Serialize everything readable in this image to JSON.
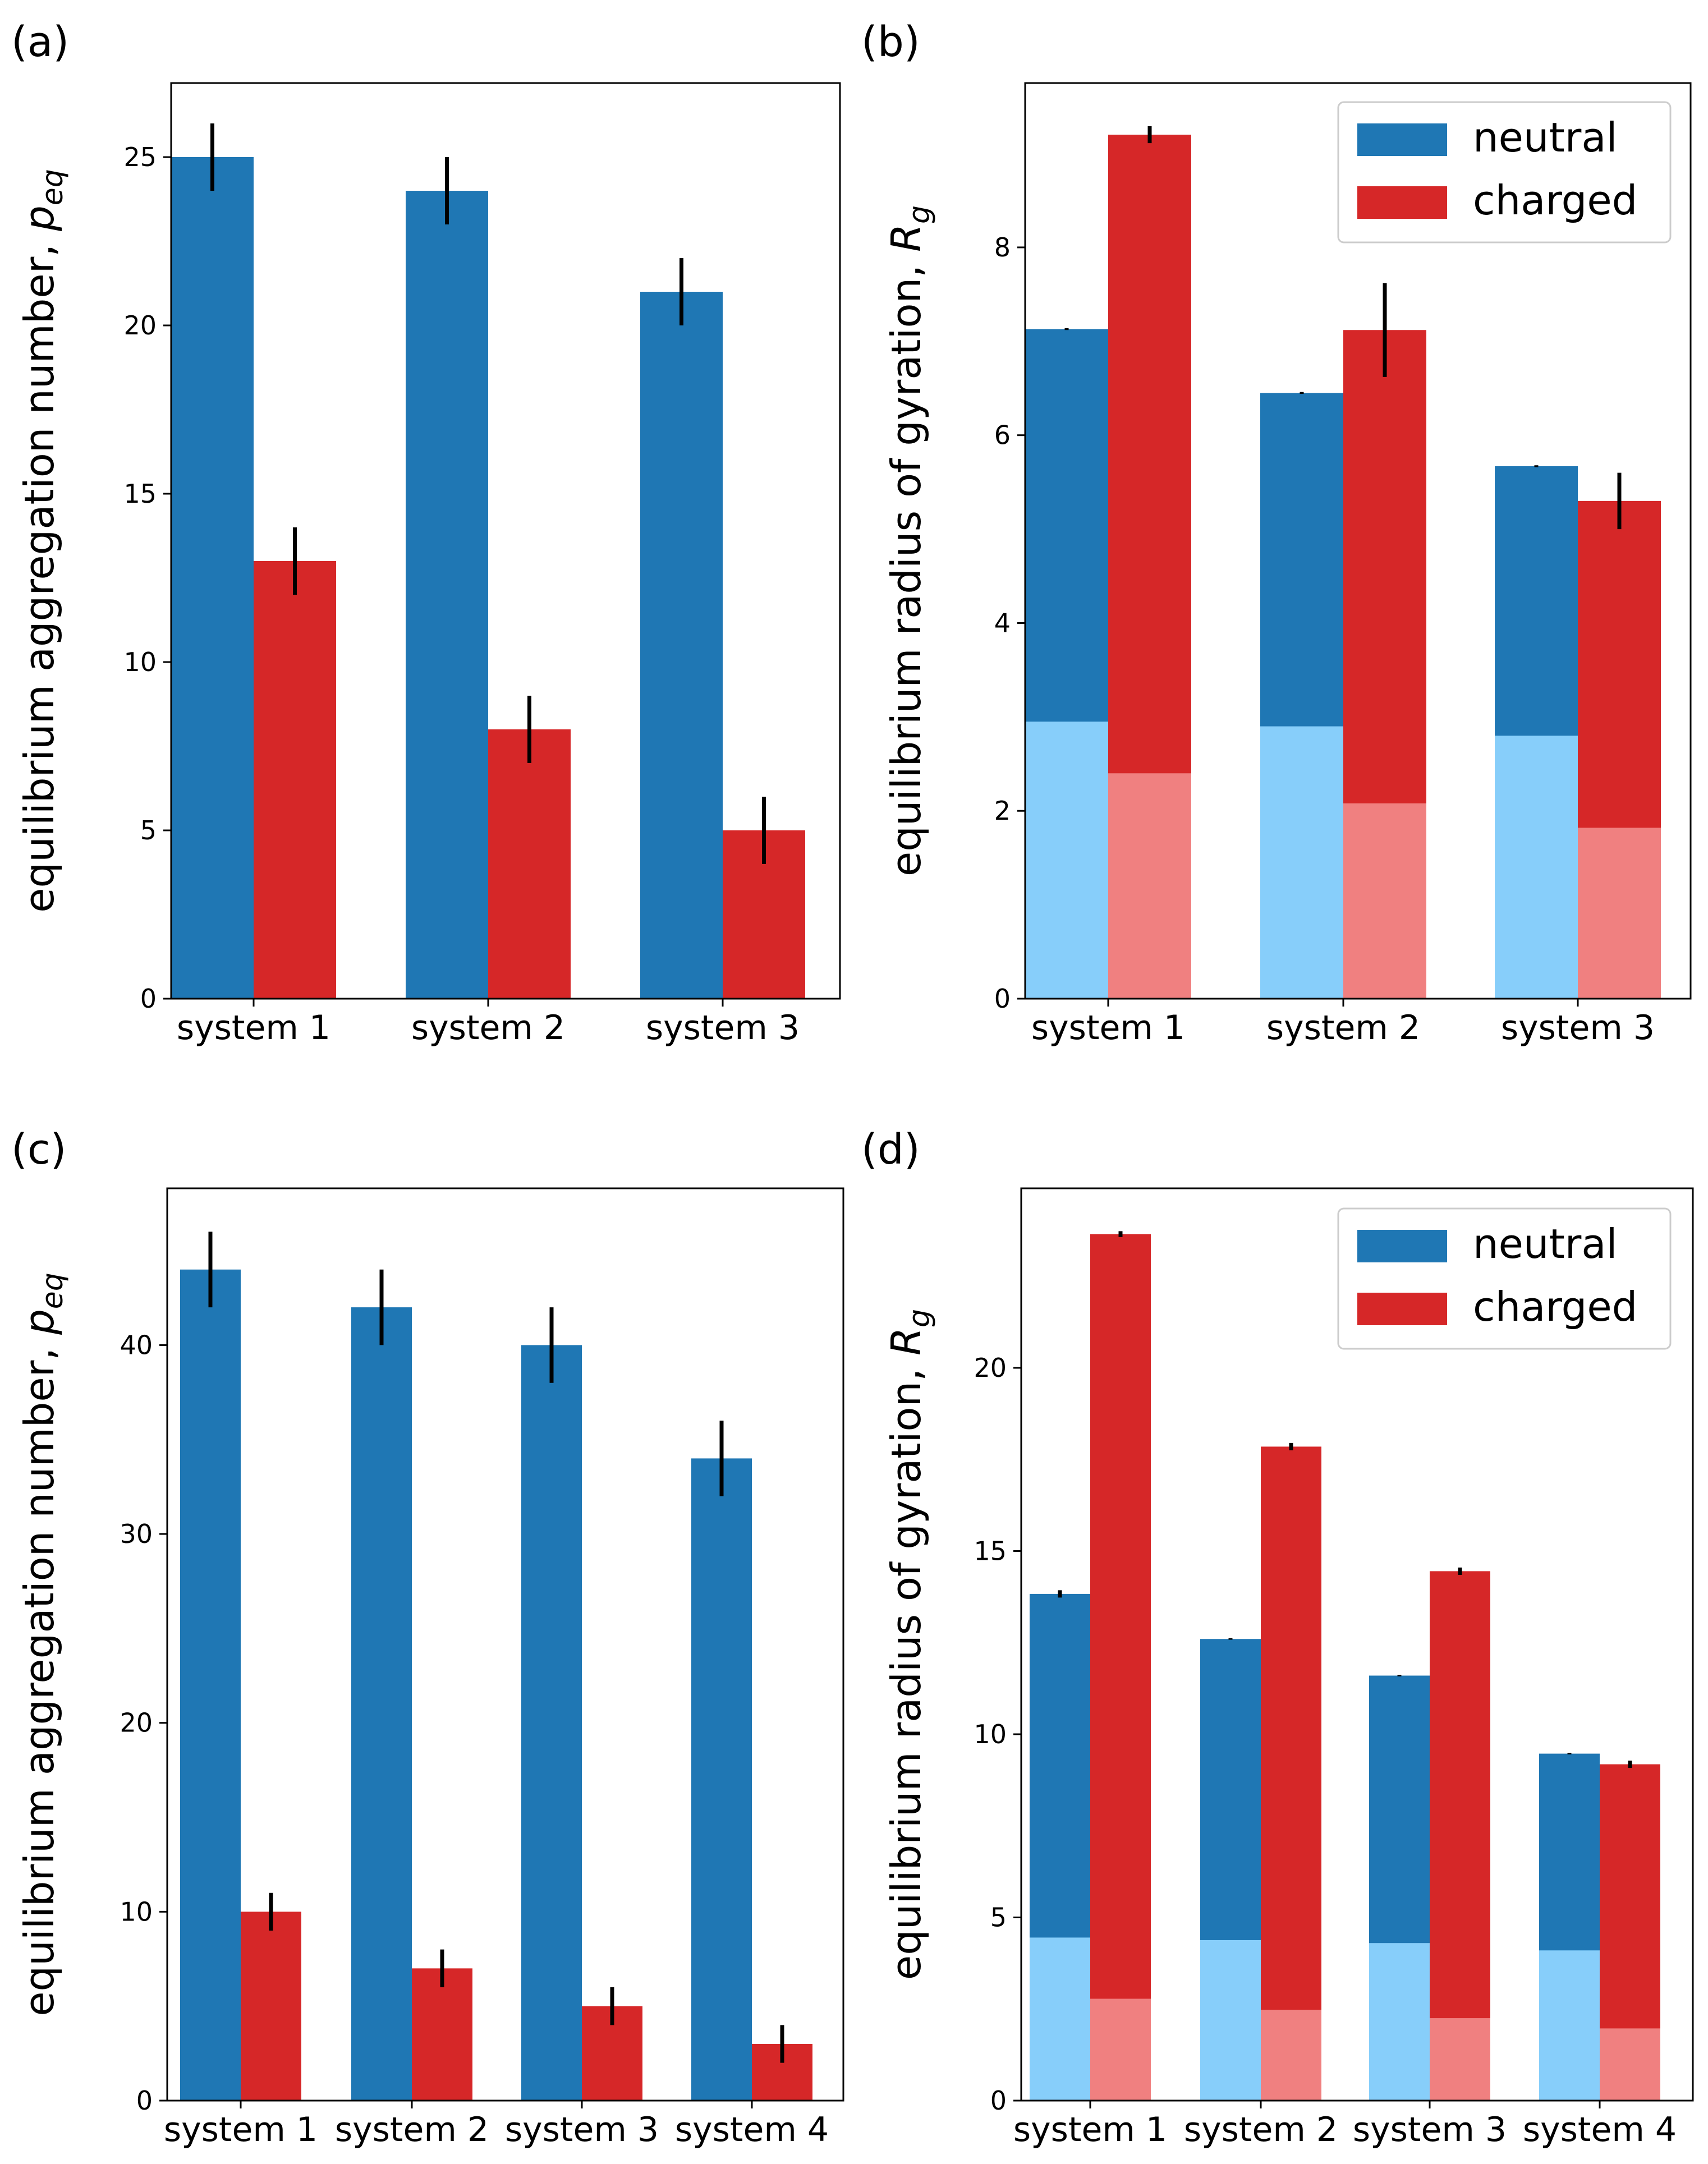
{
  "chart_data": [
    {
      "type": "bar",
      "panel": "(a)",
      "categories": [
        "system 1",
        "system 2",
        "system 3"
      ],
      "ylabel_main": "equilibrium aggregation number, ",
      "ylabel_symbol": "p",
      "ylabel_sub": "eq",
      "ylim": [
        0,
        27.2
      ],
      "yticks": [
        "0",
        "5",
        "10",
        "15",
        "20",
        "25"
      ],
      "ytick_values": [
        0,
        5,
        10,
        15,
        20,
        25
      ],
      "legend": null,
      "series": [
        {
          "name": "neutral",
          "color": "#1f77b4",
          "values": [
            25,
            24,
            21
          ],
          "errors": [
            1,
            1,
            1
          ]
        },
        {
          "name": "charged",
          "color": "#d62728",
          "values": [
            13,
            8,
            5
          ],
          "errors": [
            1,
            1,
            1
          ]
        }
      ]
    },
    {
      "type": "bar",
      "panel": "(b)",
      "categories": [
        "system 1",
        "system 2",
        "system 3"
      ],
      "ylabel_main": "equilibrium radius of gyration, ",
      "ylabel_symbol": "R",
      "ylabel_sub": "g",
      "ylim": [
        0,
        9.75
      ],
      "yticks": [
        "0",
        "2",
        "4",
        "6",
        "8"
      ],
      "ytick_values": [
        0,
        2,
        4,
        6,
        8
      ],
      "legend": {
        "position": "top-right",
        "entries": [
          "neutral",
          "charged"
        ]
      },
      "series": [
        {
          "name": "neutral",
          "color": "#1f77b4",
          "light_color": "#87cefa",
          "values": [
            7.13,
            6.45,
            5.67
          ],
          "errors": [
            0.01,
            0.01,
            0.01
          ],
          "inner_values": [
            2.95,
            2.9,
            2.8
          ]
        },
        {
          "name": "charged",
          "color": "#d62728",
          "light_color": "#f08080",
          "values": [
            9.2,
            7.12,
            5.3
          ],
          "errors": [
            0.09,
            0.5,
            0.3
          ],
          "inner_values": [
            2.4,
            2.08,
            1.82
          ]
        }
      ]
    },
    {
      "type": "bar",
      "panel": "(c)",
      "categories": [
        "system 1",
        "system 2",
        "system 3",
        "system 4"
      ],
      "ylabel_main": "equilibrium aggregation number, ",
      "ylabel_symbol": "p",
      "ylabel_sub": "eq",
      "ylim": [
        0,
        48.3
      ],
      "yticks": [
        "0",
        "10",
        "20",
        "30",
        "40"
      ],
      "ytick_values": [
        0,
        10,
        20,
        30,
        40
      ],
      "legend": null,
      "series": [
        {
          "name": "neutral",
          "color": "#1f77b4",
          "values": [
            44,
            42,
            40,
            34
          ],
          "errors": [
            2,
            2,
            2,
            2
          ]
        },
        {
          "name": "charged",
          "color": "#d62728",
          "values": [
            10,
            7,
            5,
            3
          ],
          "errors": [
            1,
            1,
            1,
            1
          ]
        }
      ]
    },
    {
      "type": "bar",
      "panel": "(d)",
      "categories": [
        "system 1",
        "system 2",
        "system 3",
        "system 4"
      ],
      "ylabel_main": "equilibrium radius of gyration, ",
      "ylabel_symbol": "R",
      "ylabel_sub": "g",
      "ylim": [
        0,
        24.9
      ],
      "yticks": [
        "0",
        "5",
        "10",
        "15",
        "20"
      ],
      "ytick_values": [
        0,
        5,
        10,
        15,
        20
      ],
      "legend": {
        "position": "top-right",
        "entries": [
          "neutral",
          "charged"
        ]
      },
      "series": [
        {
          "name": "neutral",
          "color": "#1f77b4",
          "light_color": "#87cefa",
          "values": [
            13.83,
            12.6,
            11.6,
            9.47
          ],
          "errors": [
            0.1,
            0.02,
            0.02,
            0.02
          ],
          "inner_values": [
            4.45,
            4.38,
            4.3,
            4.1
          ]
        },
        {
          "name": "charged",
          "color": "#d62728",
          "light_color": "#f08080",
          "values": [
            23.65,
            17.85,
            14.45,
            9.18
          ],
          "errors": [
            0.08,
            0.1,
            0.1,
            0.1
          ],
          "inner_values": [
            2.78,
            2.48,
            2.25,
            1.97
          ]
        }
      ]
    }
  ]
}
